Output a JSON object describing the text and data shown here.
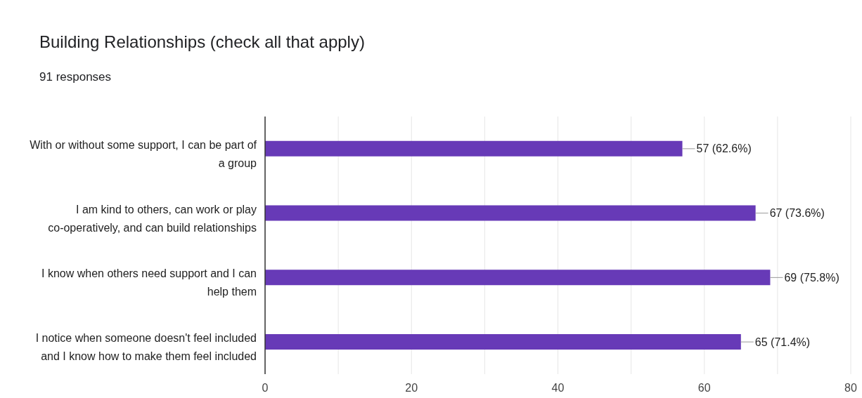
{
  "chart_data": {
    "type": "bar",
    "orientation": "horizontal",
    "title": "Building Relationships (check all that apply)",
    "subtitle": "91 responses",
    "categories": [
      "With or without some support, I can be part of a group",
      "I am kind to others, can work or play co-operatively, and can build relationships",
      "I know when others need support and I can help them",
      "I notice when someone doesn't feel included and I know how to make them feel included"
    ],
    "values": [
      57,
      67,
      69,
      65
    ],
    "value_labels": [
      "57 (62.6%)",
      "67 (73.6%)",
      "69 (75.8%)",
      "65 (71.4%)"
    ],
    "color": "#673ab7",
    "xlim": [
      0,
      80
    ],
    "xticks": [
      0,
      {
        "value": 10,
        "label": null
      },
      20,
      {
        "value": 30,
        "label": null
      },
      40,
      {
        "value": 50,
        "label": null
      },
      60,
      {
        "value": 70,
        "label": null
      },
      80
    ],
    "grid": true
  }
}
